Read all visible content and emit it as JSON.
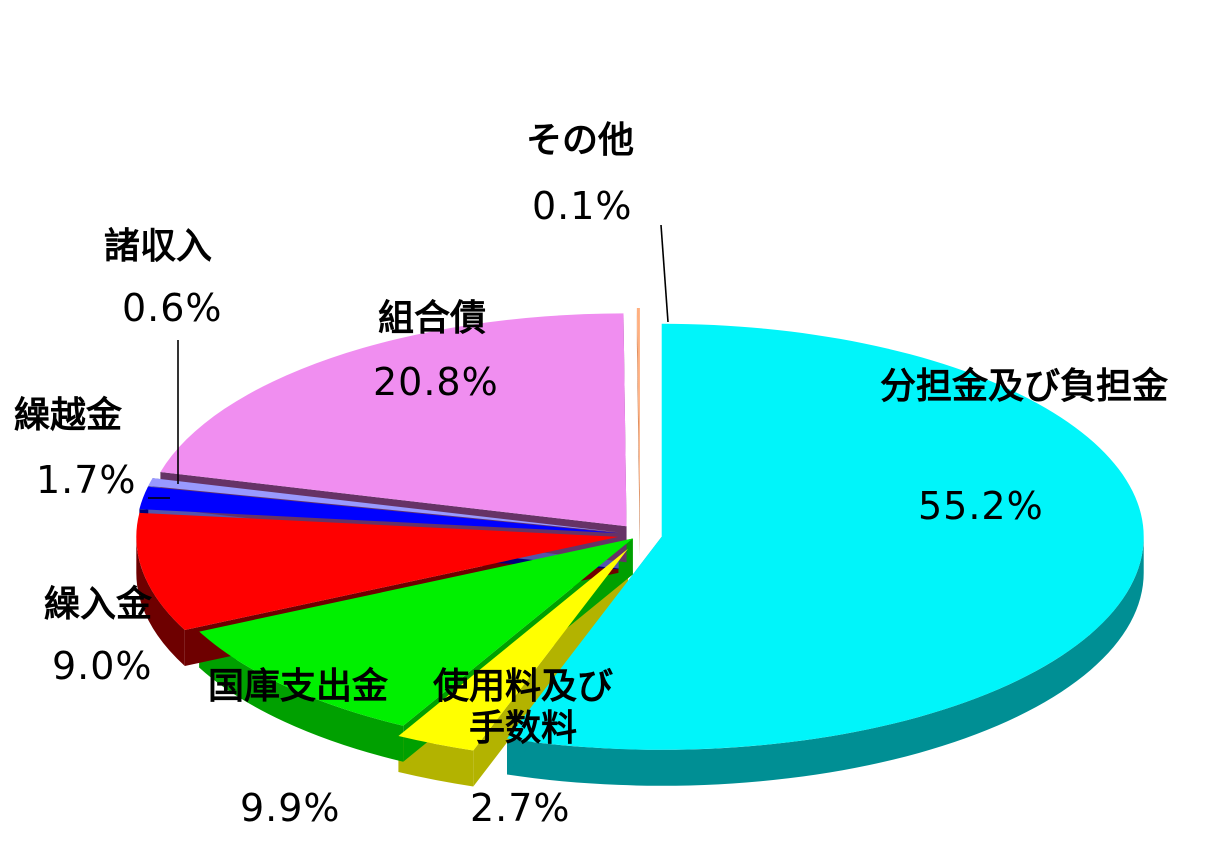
{
  "chart_data": {
    "type": "pie",
    "style": "3d-exploded",
    "start_angle_deg": 90,
    "direction": "clockwise",
    "legend": "none",
    "slices": [
      {
        "label": "分担金及び負担金",
        "value": 55.2,
        "value_label": "55.2%",
        "color": "#00F5FA",
        "side_color": "#008F94"
      },
      {
        "label": "使用料及び手数料",
        "value": 2.7,
        "value_label": "2.7%",
        "color": "#FFFF00",
        "side_color": "#B3B300"
      },
      {
        "label": "国庫支出金",
        "value": 9.9,
        "value_label": "9.9%",
        "color": "#00F000",
        "side_color": "#00A000"
      },
      {
        "label": "繰入金",
        "value": 9.0,
        "value_label": "9.0%",
        "color": "#FF0000",
        "side_color": "#6E0000"
      },
      {
        "label": "繰越金",
        "value": 1.7,
        "value_label": "1.7%",
        "color": "#0000FF",
        "side_color": "#00007A"
      },
      {
        "label": "諸収入",
        "value": 0.6,
        "value_label": "0.6%",
        "color": "#9999FF",
        "side_color": "#5555AA"
      },
      {
        "label": "組合債",
        "value": 20.8,
        "value_label": "20.8%",
        "color": "#F08EF0",
        "side_color": "#663366"
      },
      {
        "label": "その他",
        "value": 0.1,
        "value_label": "0.1%",
        "color": "#FFB080",
        "side_color": "#C07040"
      }
    ]
  }
}
